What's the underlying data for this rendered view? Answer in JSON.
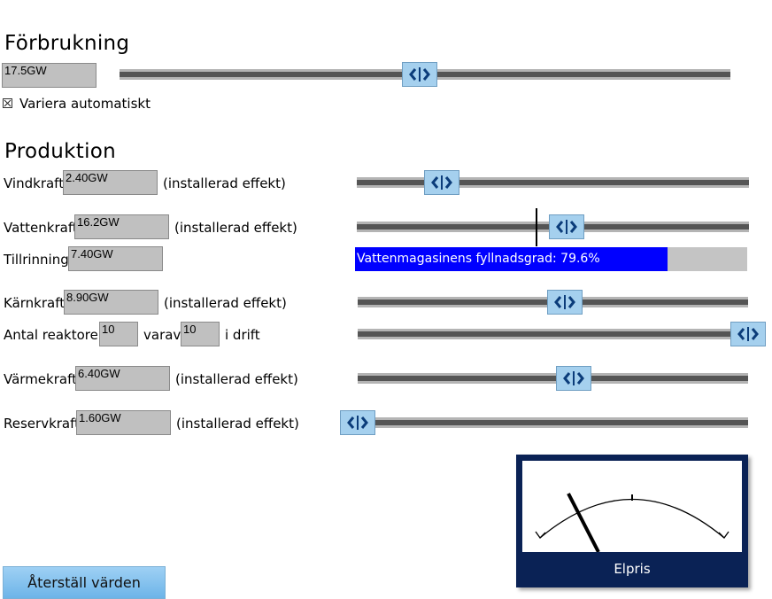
{
  "consumption": {
    "title": "Förbrukning",
    "value": "17.5GW",
    "slider_level": 0.49,
    "auto_vary_label": "Variera automatiskt",
    "auto_vary_checked": true
  },
  "production": {
    "title": "Produktion",
    "rows": {
      "wind": {
        "label": "Vindkraft",
        "value": "2.40GW",
        "suffix": "(installerad effekt)",
        "slider_level": 0.22
      },
      "hydro": {
        "label": "Vattenkraft",
        "value": "16.2GW",
        "suffix": "(installerad effekt)",
        "slider_level": 0.54
      },
      "inflow": {
        "label": "Tillrinning",
        "value": "7.40GW"
      },
      "nuclear": {
        "label": "Kärnkraft",
        "value": "8.90GW",
        "suffix": "(installerad effekt)",
        "slider_level": 0.53
      },
      "reactors": {
        "label": "Antal reaktorer",
        "count": "10",
        "of_label": "varav",
        "running": "10",
        "suffix": "i drift",
        "slider_level": 1.0
      },
      "thermal": {
        "label": "Värmekraft",
        "value": "6.40GW",
        "suffix": "(installerad effekt)",
        "slider_level": 0.55
      },
      "reserve": {
        "label": "Reservkraft",
        "value": "1.60GW",
        "suffix": "(installerad effekt)",
        "slider_level": 0.0
      }
    },
    "reservoir": {
      "text": "Vattenmagasinens fyllnadsgrad: 79.6%",
      "level": 0.796,
      "fill_color": "#0000ff"
    }
  },
  "reset_button_label": "Återställ värden",
  "price_meter": {
    "label": "Elpris",
    "needle_level": 0.22
  },
  "icons": {
    "slider_thumb": "left-right-arrows-icon",
    "checkbox_mark": "x-mark-icon"
  }
}
